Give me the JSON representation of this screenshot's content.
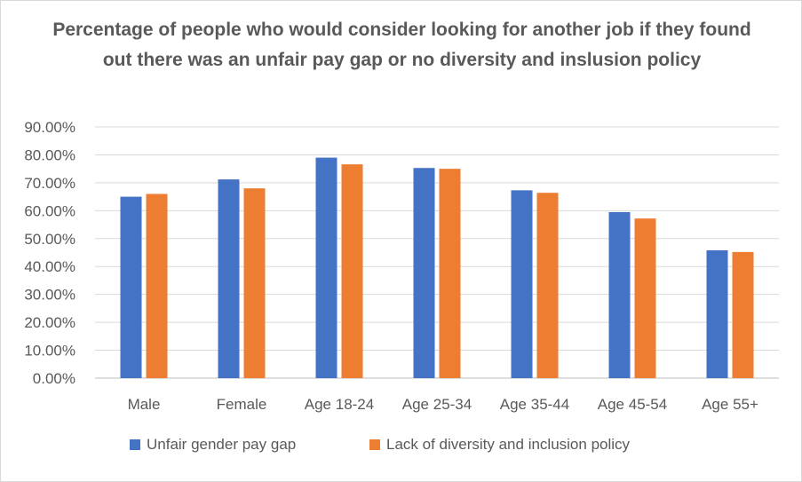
{
  "chart_data": {
    "type": "bar",
    "title": "Percentage of people who would consider looking for another job if they found out there was an unfair pay gap or no diversity and inslusion policy",
    "categories": [
      "Male",
      "Female",
      "Age 18-24",
      "Age 25-34",
      "Age 35-44",
      "Age 45-54",
      "Age 55+"
    ],
    "series": [
      {
        "name": "Unfair gender pay gap",
        "color": "#4472C4",
        "values": [
          65.0,
          71.2,
          79.0,
          75.3,
          67.3,
          59.5,
          45.8
        ]
      },
      {
        "name": "Lack of diversity and inclusion policy",
        "color": "#ED7D31",
        "values": [
          66.0,
          68.0,
          76.6,
          75.0,
          66.4,
          57.2,
          45.2
        ]
      }
    ],
    "ylim": [
      0,
      90
    ],
    "ytick_step": 10,
    "ytick_labels": [
      "0.00%",
      "10.00%",
      "20.00%",
      "30.00%",
      "40.00%",
      "50.00%",
      "60.00%",
      "70.00%",
      "80.00%",
      "90.00%"
    ],
    "grid": true,
    "legend_position": "bottom"
  }
}
